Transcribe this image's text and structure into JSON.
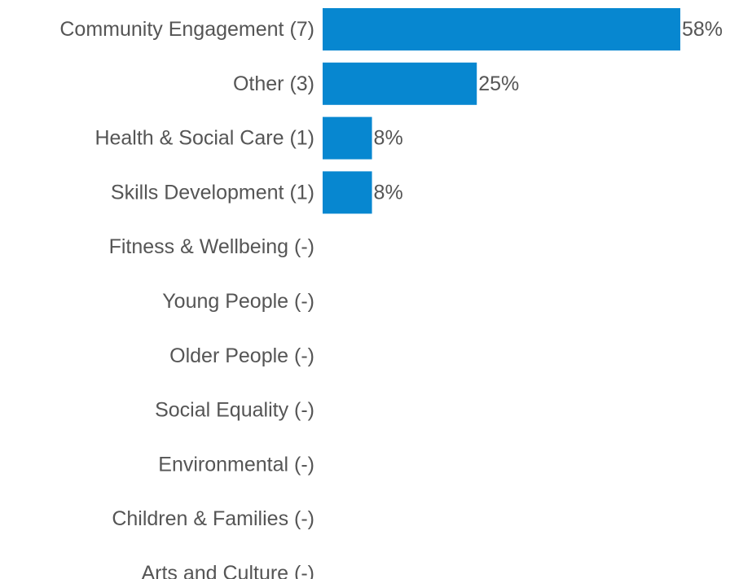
{
  "chart_data": {
    "type": "bar",
    "orientation": "horizontal",
    "categories": [
      "Community Engagement (7)",
      "Other (3)",
      "Health & Social Care (1)",
      "Skills Development (1)",
      "Fitness & Wellbeing (-)",
      "Young People (-)",
      "Older People (-)",
      "Social Equality (-)",
      "Environmental (-)",
      "Children & Families (-)",
      "Arts and Culture (-)"
    ],
    "values": [
      58,
      25,
      8,
      8,
      null,
      null,
      null,
      null,
      null,
      null,
      null
    ],
    "value_labels": [
      "58%",
      "25%",
      "8%",
      "8%",
      "",
      "",
      "",
      "",
      "",
      "",
      ""
    ],
    "xlim": [
      0,
      60
    ],
    "grid": false,
    "bar_color": "#0787d0"
  }
}
